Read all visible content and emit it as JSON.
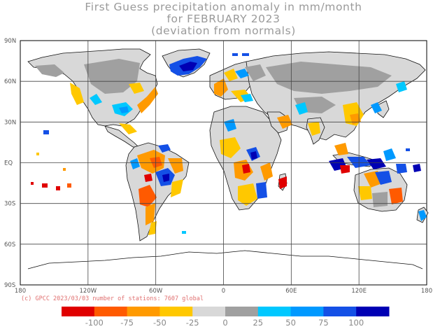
{
  "title": {
    "line1": "First Guess precipitation anomaly in mm/month",
    "line2": "for FEBRUARY 2023",
    "line3": "(deviation from normals)"
  },
  "credit": "(c) GPCC 2023/03/03 number of stations: 7607 global",
  "axes": {
    "lat_labels": [
      "90N",
      "60N",
      "30N",
      "EQ",
      "30S",
      "60S",
      "90S"
    ],
    "lon_labels": [
      "180",
      "120W",
      "60W",
      "0",
      "60E",
      "120E",
      "180"
    ]
  },
  "colorbar": {
    "labels": [
      "-100",
      "-75",
      "-50",
      "-25",
      "0",
      "25",
      "50",
      "75",
      "100"
    ],
    "colors": [
      "#e00000",
      "#ff5a00",
      "#ff9a00",
      "#ffc800",
      "#d8d8d8",
      "#a0a0a0",
      "#00c8ff",
      "#0099ff",
      "#1450e6",
      "#0000b4"
    ]
  },
  "colors": {
    "land": "#d8d8d8",
    "wet_gray": "#a0a0a0",
    "coast": "#000000"
  }
}
